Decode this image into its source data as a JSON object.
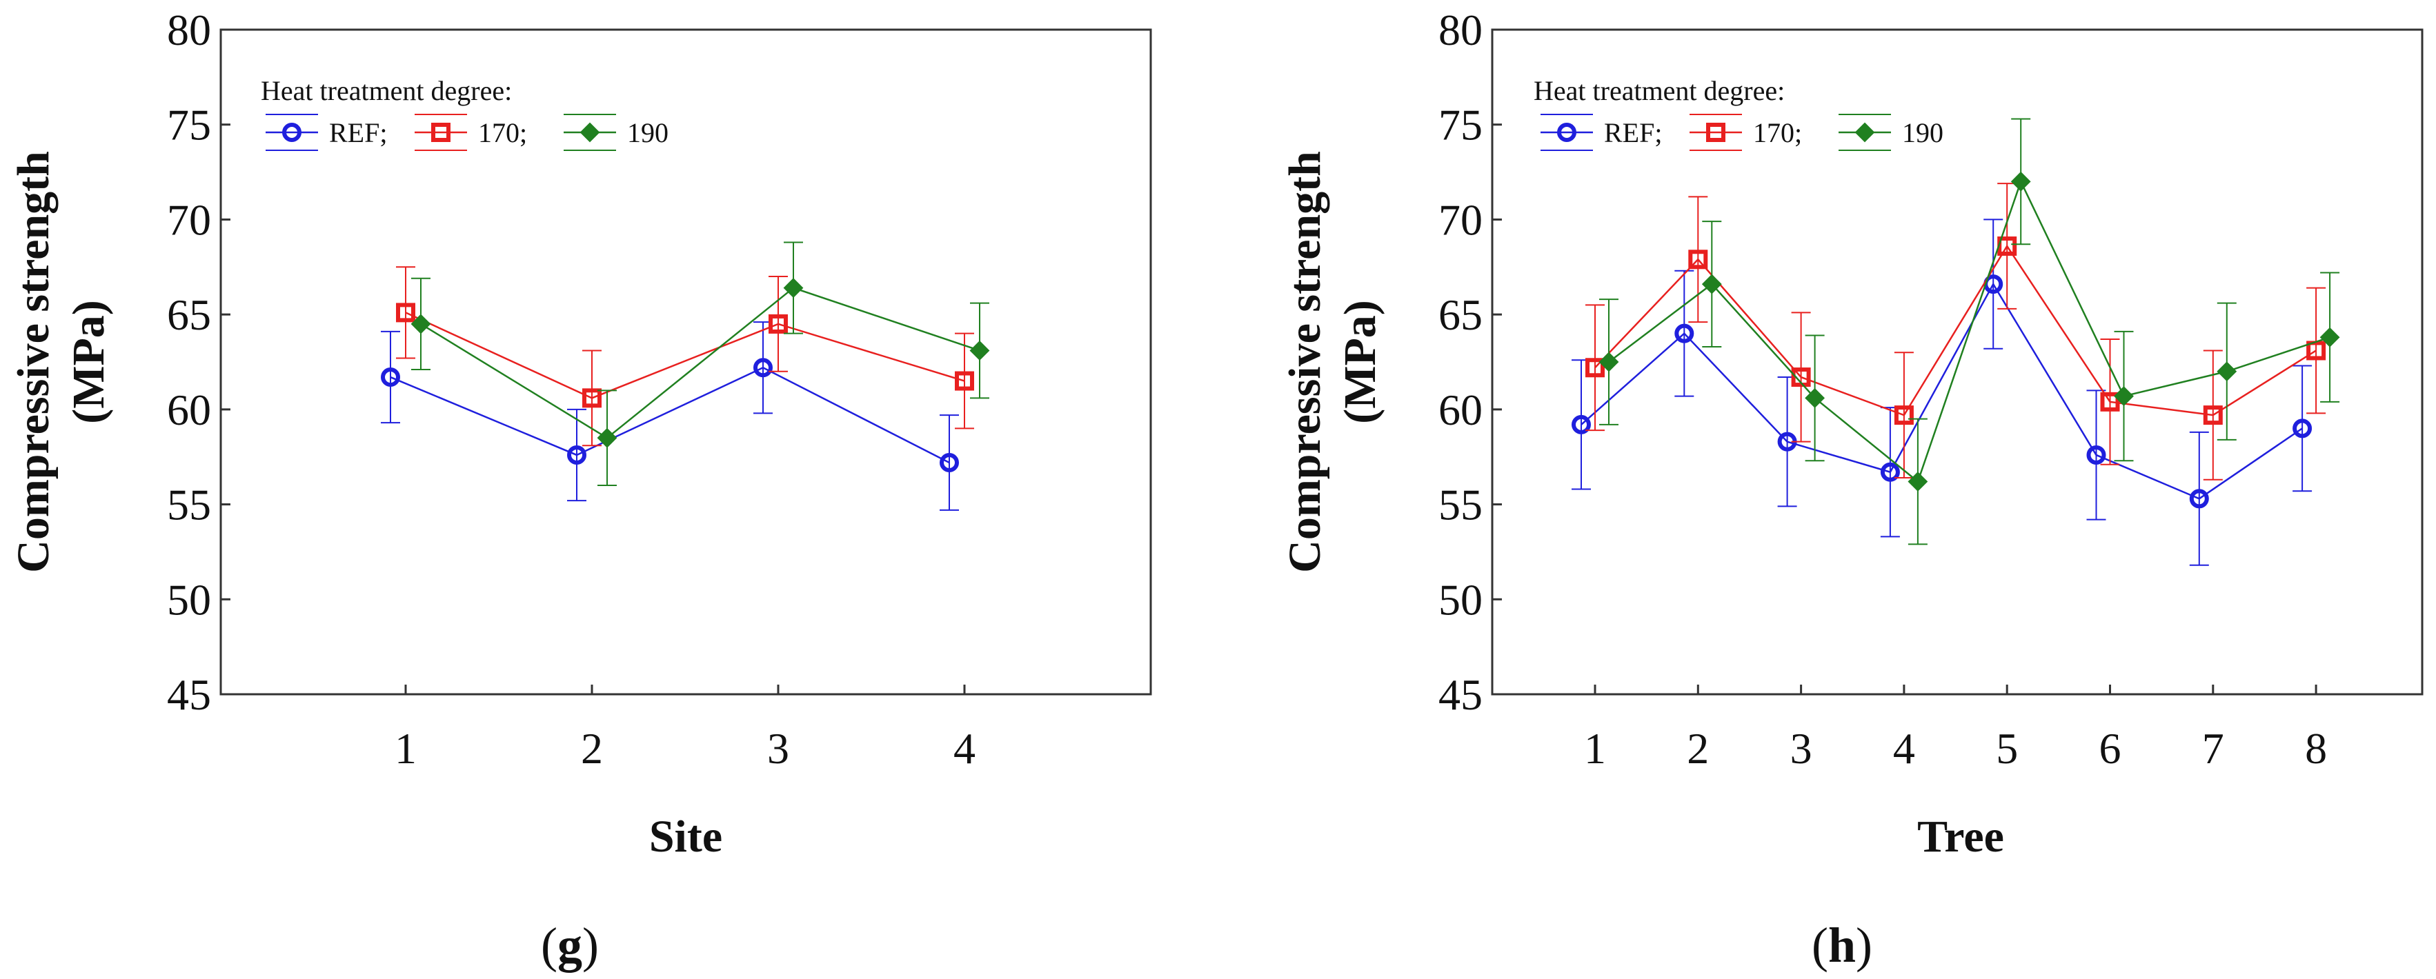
{
  "chart_data": [
    {
      "type": "line",
      "panel_label": "g",
      "xlabel": "Site",
      "ylabel_line1": "Compressive strength",
      "ylabel_line2": "(MPa)",
      "ylim": [
        45,
        80
      ],
      "yticks": [
        "80",
        "75",
        "70",
        "65",
        "60",
        "55",
        "50",
        "45"
      ],
      "categories": [
        "1",
        "2",
        "3",
        "4"
      ],
      "legend_title": "Heat treatment degree:",
      "series": [
        {
          "name": "REF;",
          "color": "#1f1fdd",
          "marker": "circle",
          "values": [
            61.7,
            57.6,
            62.2,
            57.2
          ],
          "err": [
            2.4,
            2.4,
            2.4,
            2.5
          ]
        },
        {
          "name": "170;",
          "color": "#e8201f",
          "marker": "square",
          "values": [
            65.1,
            60.6,
            64.5,
            61.5
          ],
          "err": [
            2.4,
            2.5,
            2.5,
            2.5
          ]
        },
        {
          "name": "190",
          "color": "#208020",
          "marker": "diamond",
          "values": [
            64.5,
            58.5,
            66.4,
            63.1
          ],
          "err": [
            2.4,
            2.5,
            2.4,
            2.5
          ]
        }
      ]
    },
    {
      "type": "line",
      "panel_label": "h",
      "xlabel": "Tree",
      "ylabel_line1": "Compressive strength",
      "ylabel_line2": "(MPa)",
      "ylim": [
        45,
        80
      ],
      "yticks": [
        "80",
        "75",
        "70",
        "65",
        "60",
        "55",
        "50",
        "45"
      ],
      "categories": [
        "1",
        "2",
        "3",
        "4",
        "5",
        "6",
        "7",
        "8"
      ],
      "legend_title": "Heat treatment degree:",
      "series": [
        {
          "name": "REF;",
          "color": "#1f1fdd",
          "marker": "circle",
          "values": [
            59.2,
            64.0,
            58.3,
            56.7,
            66.6,
            57.6,
            55.3,
            59.0
          ],
          "err": [
            3.4,
            3.3,
            3.4,
            3.4,
            3.4,
            3.4,
            3.5,
            3.3
          ]
        },
        {
          "name": "170;",
          "color": "#e8201f",
          "marker": "square",
          "values": [
            62.2,
            67.9,
            61.7,
            59.7,
            68.6,
            60.4,
            59.7,
            63.1
          ],
          "err": [
            3.3,
            3.3,
            3.4,
            3.3,
            3.3,
            3.3,
            3.4,
            3.3
          ]
        },
        {
          "name": "190",
          "color": "#208020",
          "marker": "diamond",
          "values": [
            62.5,
            66.6,
            60.6,
            56.2,
            72.0,
            60.7,
            62.0,
            63.8
          ],
          "err": [
            3.3,
            3.3,
            3.3,
            3.3,
            3.3,
            3.4,
            3.6,
            3.4
          ]
        }
      ]
    }
  ]
}
